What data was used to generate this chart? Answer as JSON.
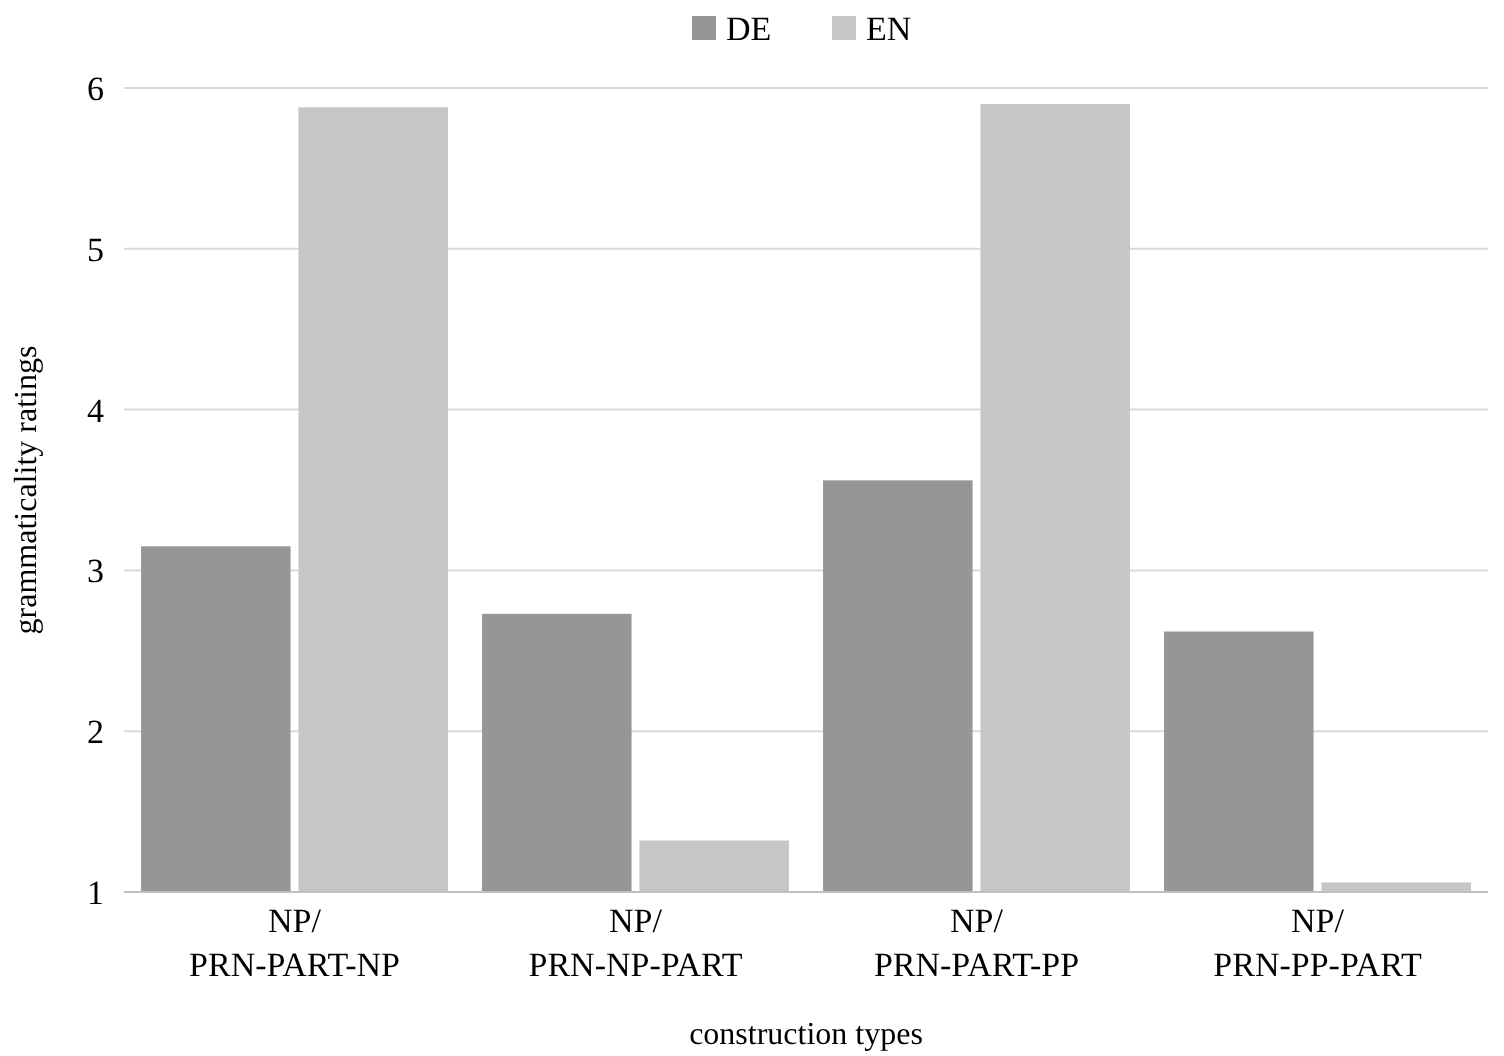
{
  "chart_data": {
    "type": "bar",
    "xlabel": "construction types",
    "ylabel": "grammaticality ratings",
    "categories": [
      "NP/\nPRN-PART-NP",
      "NP/\nPRN-NP-PART",
      "NP/\nPRN-PART-PP",
      "NP/\nPRN-PP-PART"
    ],
    "series": [
      {
        "name": "DE",
        "color": "#969696",
        "values": [
          3.15,
          2.73,
          3.56,
          2.62
        ]
      },
      {
        "name": "EN",
        "color": "#c6c6c6",
        "values": [
          5.88,
          1.32,
          5.9,
          1.06
        ]
      }
    ],
    "ylim": [
      1,
      6
    ],
    "yticks": [
      1,
      2,
      3,
      4,
      5,
      6
    ],
    "grid": "y",
    "legend": "top"
  }
}
